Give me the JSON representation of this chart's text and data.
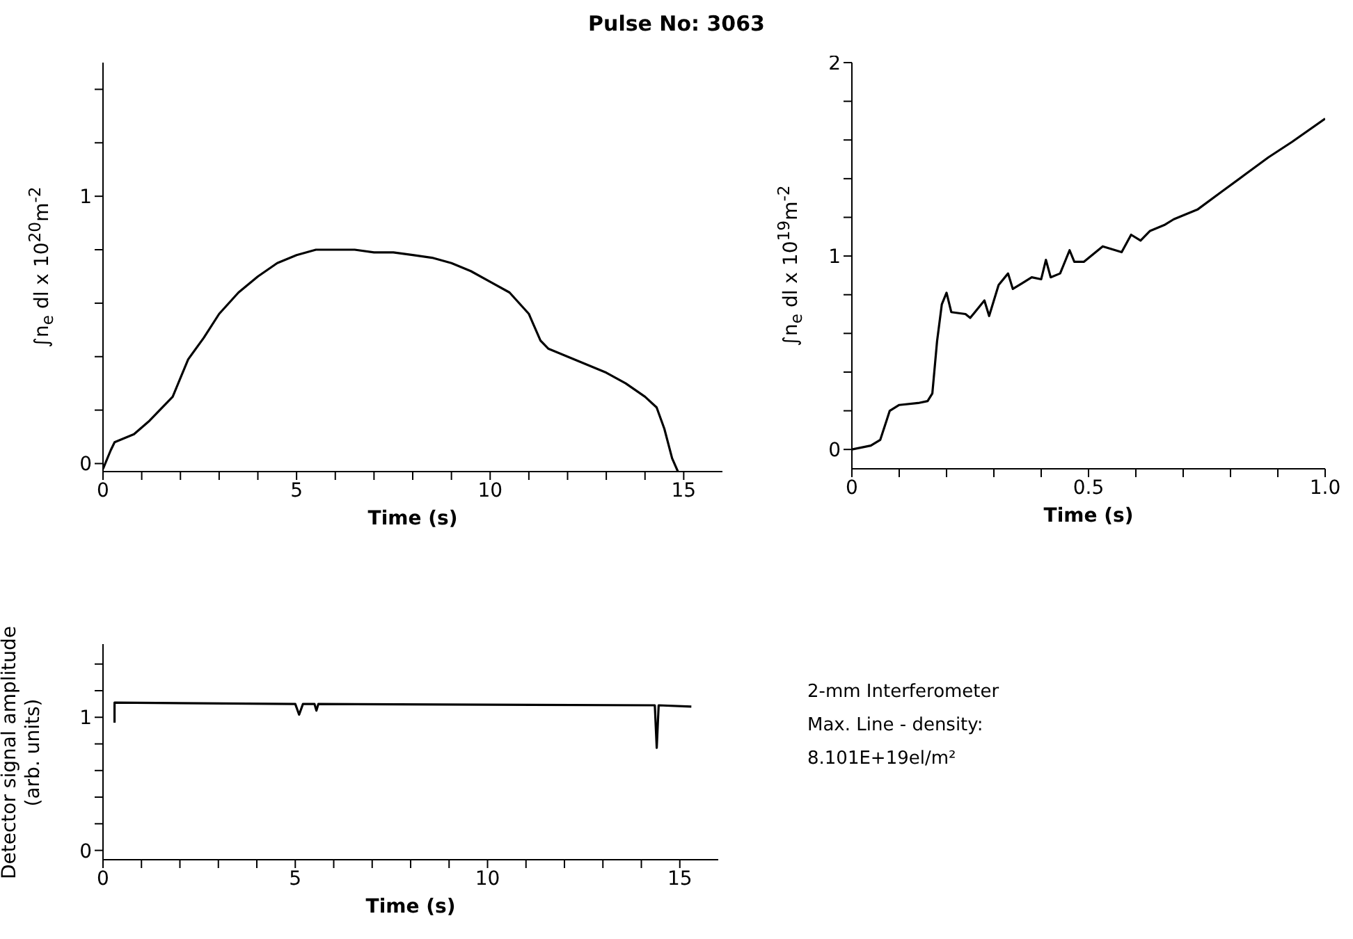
{
  "chart_data": [
    {
      "type": "line",
      "title": "Pulse No: 3063",
      "xlabel": "Time (s)",
      "ylabel": "∫n$_{e}$ dl x 10$^{20}$m$^{-2}$",
      "x": [
        0,
        0.2,
        0.3,
        0.8,
        1.2,
        1.8,
        2.2,
        2.6,
        3.0,
        3.5,
        4.0,
        4.5,
        5.0,
        5.5,
        6.0,
        6.5,
        7.0,
        7.5,
        8.0,
        8.5,
        9.0,
        9.5,
        10.0,
        10.5,
        11.0,
        11.3,
        11.5,
        12.0,
        12.5,
        13.0,
        13.5,
        14.0,
        14.3,
        14.5,
        14.7,
        14.85
      ],
      "series": [
        {
          "color": "#000000",
          "values": [
            -0.02,
            0.05,
            0.08,
            0.11,
            0.16,
            0.25,
            0.39,
            0.47,
            0.56,
            0.64,
            0.7,
            0.75,
            0.78,
            0.8,
            0.8,
            0.8,
            0.79,
            0.79,
            0.78,
            0.77,
            0.75,
            0.72,
            0.68,
            0.64,
            0.56,
            0.46,
            0.43,
            0.4,
            0.37,
            0.34,
            0.3,
            0.25,
            0.21,
            0.13,
            0.02,
            -0.03
          ]
        }
      ],
      "xlim": [
        0,
        16
      ],
      "ylim": [
        -0.03,
        1.5
      ],
      "xticks": [
        0,
        {
          "value": 1,
          "label": null
        },
        {
          "value": 2,
          "label": null
        },
        {
          "value": 3,
          "label": null
        },
        {
          "value": 4,
          "label": null
        },
        5,
        {
          "value": 6,
          "label": null
        },
        {
          "value": 7,
          "label": null
        },
        {
          "value": 8,
          "label": null
        },
        {
          "value": 9,
          "label": null
        },
        10,
        {
          "value": 11,
          "label": null
        },
        {
          "value": 12,
          "label": null
        },
        {
          "value": 13,
          "label": null
        },
        {
          "value": 14,
          "label": null
        },
        15
      ],
      "yticks": [
        0,
        {
          "value": 0.2,
          "label": null
        },
        {
          "value": 0.4,
          "label": null
        },
        {
          "value": 0.6,
          "label": null
        },
        {
          "value": 0.8,
          "label": null
        },
        1,
        {
          "value": 1.2,
          "label": null
        },
        {
          "value": 1.4,
          "label": null
        }
      ]
    },
    {
      "type": "line",
      "xlabel": "Time (s)",
      "ylabel": "∫n$_{e}$ dl x 10$^{19}$m$^{-2}$",
      "x": [
        0,
        0.04,
        0.06,
        0.08,
        0.1,
        0.14,
        0.16,
        0.17,
        0.18,
        0.19,
        0.2,
        0.21,
        0.24,
        0.25,
        0.26,
        0.28,
        0.29,
        0.31,
        0.33,
        0.34,
        0.36,
        0.38,
        0.4,
        0.41,
        0.42,
        0.44,
        0.46,
        0.47,
        0.49,
        0.53,
        0.57,
        0.59,
        0.61,
        0.63,
        0.66,
        0.68,
        0.73,
        0.78,
        0.83,
        0.88,
        0.93,
        1.0
      ],
      "series": [
        {
          "color": "#000000",
          "values": [
            0,
            0.02,
            0.05,
            0.2,
            0.23,
            0.24,
            0.25,
            0.29,
            0.56,
            0.75,
            0.81,
            0.71,
            0.7,
            0.68,
            0.71,
            0.77,
            0.69,
            0.85,
            0.91,
            0.83,
            0.86,
            0.89,
            0.88,
            0.98,
            0.89,
            0.91,
            1.03,
            0.97,
            0.97,
            1.05,
            1.02,
            1.11,
            1.08,
            1.13,
            1.16,
            1.19,
            1.24,
            1.33,
            1.42,
            1.51,
            1.59,
            1.71
          ]
        }
      ],
      "xlim": [
        0,
        1
      ],
      "ylim": [
        -0.1,
        2
      ],
      "xticks": [
        0,
        {
          "value": 0.1,
          "label": null
        },
        {
          "value": 0.2,
          "label": null
        },
        {
          "value": 0.3,
          "label": null
        },
        {
          "value": 0.4,
          "label": null
        },
        0.5,
        {
          "value": 0.6,
          "label": null
        },
        {
          "value": 0.7,
          "label": null
        },
        {
          "value": 0.8,
          "label": null
        },
        {
          "value": 0.9,
          "label": null
        },
        {
          "value": 1,
          "label": "1.0"
        }
      ],
      "yticks": [
        0,
        {
          "value": 0.2,
          "label": null
        },
        {
          "value": 0.4,
          "label": null
        },
        {
          "value": 0.6,
          "label": null
        },
        {
          "value": 0.8,
          "label": null
        },
        1,
        {
          "value": 1.2,
          "label": null
        },
        {
          "value": 1.4,
          "label": null
        },
        {
          "value": 1.6,
          "label": null
        },
        {
          "value": 1.8,
          "label": null
        },
        2
      ]
    },
    {
      "type": "line",
      "xlabel": "Time (s)",
      "ylabel": "Detector signal amplitude\n(arb. units)",
      "x": [
        0.3,
        0.3,
        5.0,
        5.1,
        5.2,
        5.5,
        5.55,
        5.6,
        14.35,
        14.4,
        14.45,
        15.3
      ],
      "series": [
        {
          "color": "#000000",
          "values": [
            0.96,
            1.11,
            1.1,
            1.02,
            1.1,
            1.1,
            1.05,
            1.1,
            1.09,
            0.77,
            1.09,
            1.08
          ]
        }
      ],
      "xlim": [
        0,
        16
      ],
      "ylim": [
        -0.07,
        1.55
      ],
      "xticks": [
        0,
        {
          "value": 1,
          "label": null
        },
        {
          "value": 2,
          "label": null
        },
        {
          "value": 3,
          "label": null
        },
        {
          "value": 4,
          "label": null
        },
        5,
        {
          "value": 6,
          "label": null
        },
        {
          "value": 7,
          "label": null
        },
        {
          "value": 8,
          "label": null
        },
        {
          "value": 9,
          "label": null
        },
        10,
        {
          "value": 11,
          "label": null
        },
        {
          "value": 12,
          "label": null
        },
        {
          "value": 13,
          "label": null
        },
        {
          "value": 14,
          "label": null
        },
        15
      ],
      "yticks": [
        0,
        {
          "value": 0.2,
          "label": null
        },
        {
          "value": 0.4,
          "label": null
        },
        {
          "value": 0.6,
          "label": null
        },
        {
          "value": 0.8,
          "label": null
        },
        1,
        {
          "value": 1.2,
          "label": null
        },
        {
          "value": 1.4,
          "label": null
        }
      ]
    },
    {
      "type": "other",
      "annotations": [
        "2-mm Interferometer",
        "Max. Line - density:",
        "8.101E+19el/m²"
      ]
    }
  ]
}
